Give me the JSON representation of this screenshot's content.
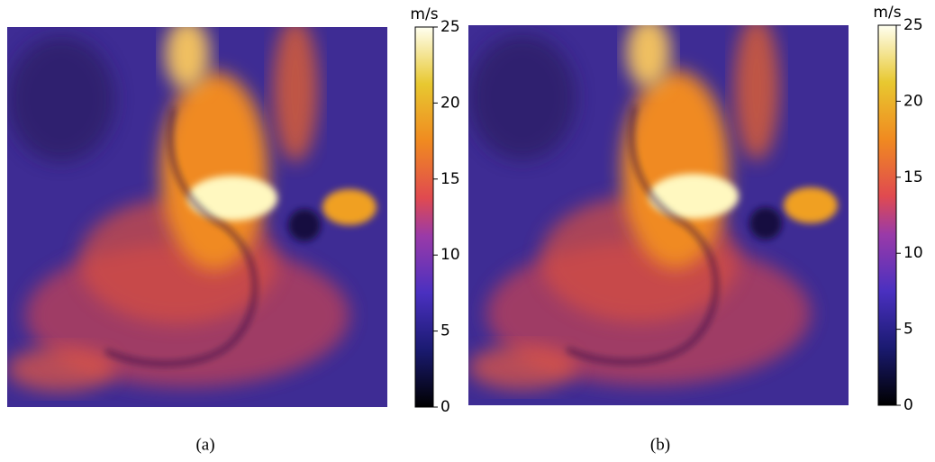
{
  "panels": [
    {
      "caption": "(a)",
      "colorbar": {
        "label": "m/s",
        "lim": [
          0,
          25
        ],
        "ticks": [
          0,
          5,
          10,
          15,
          20,
          25
        ]
      }
    },
    {
      "caption": "(b)",
      "colorbar": {
        "label": "m/s",
        "lim": [
          0,
          25
        ],
        "ticks": [
          0,
          5,
          10,
          15,
          20,
          25
        ]
      }
    }
  ]
}
